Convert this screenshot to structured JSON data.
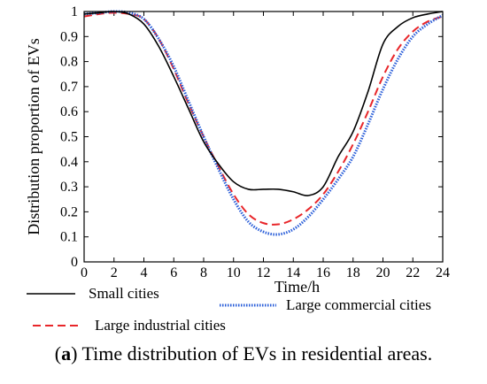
{
  "chart_data": {
    "type": "line",
    "title": "",
    "xlabel": "Time/h",
    "ylabel": "Distribution proportion of EVs",
    "xlim": [
      0,
      24
    ],
    "ylim": [
      0,
      1
    ],
    "xticks": [
      "0",
      "2",
      "4",
      "6",
      "8",
      "10",
      "12",
      "14",
      "16",
      "18",
      "20",
      "22",
      "24"
    ],
    "yticks": [
      "0",
      "0.1",
      "0.2",
      "0.3",
      "0.4",
      "0.5",
      "0.6",
      "0.7",
      "0.8",
      "0.9",
      "1"
    ],
    "grid": false,
    "legend_placement": "below plot",
    "series": [
      {
        "name": "Small cities",
        "color": "#000000",
        "style": "solid",
        "x": [
          0,
          1,
          2,
          3,
          4,
          5,
          6,
          7,
          8,
          9,
          10,
          11,
          12,
          13,
          14,
          15,
          16,
          17,
          18,
          19,
          20,
          21,
          22,
          23,
          24
        ],
        "y": [
          0.99,
          0.995,
          1.0,
          0.99,
          0.95,
          0.86,
          0.74,
          0.61,
          0.48,
          0.39,
          0.32,
          0.29,
          0.29,
          0.29,
          0.28,
          0.265,
          0.3,
          0.42,
          0.52,
          0.68,
          0.87,
          0.94,
          0.975,
          0.99,
          1.0
        ]
      },
      {
        "name": "Large industrial cities",
        "color": "#e8262a",
        "style": "dashed",
        "x": [
          0,
          1,
          2,
          3,
          4,
          5,
          6,
          7,
          8,
          9,
          10,
          11,
          12,
          13,
          14,
          15,
          16,
          17,
          18,
          19,
          20,
          21,
          22,
          23,
          24
        ],
        "y": [
          0.98,
          0.99,
          0.995,
          0.99,
          0.97,
          0.89,
          0.77,
          0.63,
          0.5,
          0.38,
          0.27,
          0.19,
          0.155,
          0.15,
          0.17,
          0.21,
          0.27,
          0.36,
          0.47,
          0.6,
          0.74,
          0.85,
          0.92,
          0.96,
          0.98
        ]
      },
      {
        "name": "Large commercial cities",
        "color": "#2b5fd9",
        "style": "dotted",
        "x": [
          0,
          1,
          2,
          3,
          4,
          5,
          6,
          7,
          8,
          9,
          10,
          11,
          12,
          13,
          14,
          15,
          16,
          17,
          18,
          19,
          20,
          21,
          22,
          23,
          24
        ],
        "y": [
          0.99,
          0.995,
          1.0,
          0.995,
          0.97,
          0.89,
          0.78,
          0.64,
          0.5,
          0.37,
          0.25,
          0.16,
          0.12,
          0.11,
          0.13,
          0.18,
          0.25,
          0.33,
          0.42,
          0.55,
          0.69,
          0.81,
          0.9,
          0.95,
          0.985
        ]
      }
    ]
  },
  "caption": {
    "label": "a",
    "text": "Time distribution of EVs in residential areas."
  }
}
